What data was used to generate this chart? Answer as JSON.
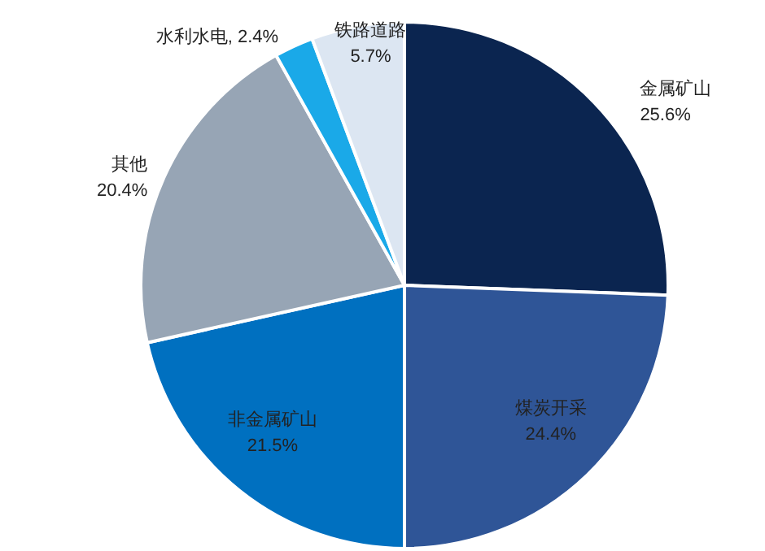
{
  "chart_data": {
    "type": "pie",
    "categories": [
      "金属矿山",
      "煤炭开采",
      "非金属矿山",
      "其他",
      "水利水电",
      "铁路道路"
    ],
    "values": [
      25.6,
      24.4,
      21.5,
      20.4,
      2.4,
      5.7
    ],
    "colors": [
      "#0b2550",
      "#2f5597",
      "#0070c0",
      "#97a5b5",
      "#1aa9e8",
      "#dce6f2"
    ],
    "value_labels": [
      "25.6%",
      "24.4%",
      "21.5%",
      "20.4%",
      "2.4%",
      "5.7%"
    ]
  }
}
